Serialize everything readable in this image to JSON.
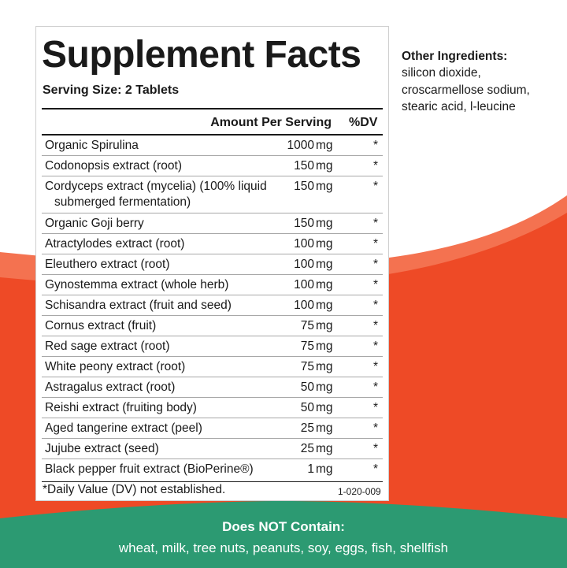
{
  "colors": {
    "accent_red": "#ee4a26",
    "accent_red_light": "#f47250",
    "green": "#2c9a72",
    "text": "#1a1a1a"
  },
  "panel": {
    "title": "Supplement Facts",
    "serving_size": "Serving Size: 2 Tablets",
    "header": {
      "amount": "Amount Per Serving",
      "dv": "%DV"
    },
    "rows": [
      {
        "name": "Organic Spirulina",
        "amount": "1000",
        "unit": "mg",
        "dv": "*"
      },
      {
        "name": "Codonopsis extract (root)",
        "amount": "150",
        "unit": "mg",
        "dv": "*"
      },
      {
        "name": "Cordyceps extract (mycelia) (100% liquid",
        "name_cont": "submerged fermentation)",
        "amount": "150",
        "unit": "mg",
        "dv": "*"
      },
      {
        "name": "Organic Goji berry",
        "amount": "150",
        "unit": "mg",
        "dv": "*"
      },
      {
        "name": "Atractylodes extract (root)",
        "amount": "100",
        "unit": "mg",
        "dv": "*"
      },
      {
        "name": "Eleuthero extract (root)",
        "amount": "100",
        "unit": "mg",
        "dv": "*"
      },
      {
        "name": "Gynostemma extract (whole herb)",
        "amount": "100",
        "unit": "mg",
        "dv": "*"
      },
      {
        "name": "Schisandra extract (fruit and seed)",
        "amount": "100",
        "unit": "mg",
        "dv": "*"
      },
      {
        "name": "Cornus extract (fruit)",
        "amount": "75",
        "unit": "mg",
        "dv": "*"
      },
      {
        "name": "Red sage extract (root)",
        "amount": "75",
        "unit": "mg",
        "dv": "*"
      },
      {
        "name": "White peony extract (root)",
        "amount": "75",
        "unit": "mg",
        "dv": "*"
      },
      {
        "name": "Astragalus extract (root)",
        "amount": "50",
        "unit": "mg",
        "dv": "*"
      },
      {
        "name": "Reishi extract (fruiting body)",
        "amount": "50",
        "unit": "mg",
        "dv": "*"
      },
      {
        "name": "Aged tangerine extract (peel)",
        "amount": "25",
        "unit": "mg",
        "dv": "*"
      },
      {
        "name": "Jujube extract (seed)",
        "amount": "25",
        "unit": "mg",
        "dv": "*"
      },
      {
        "name": "Black pepper fruit extract (BioPerine®)",
        "amount": "1",
        "unit": "mg",
        "dv": "*"
      }
    ],
    "footnote": "*Daily Value (DV) not established.",
    "code": "1-020-009"
  },
  "other_ingredients": {
    "title": "Other Ingredients:",
    "lines": [
      "silicon dioxide,",
      "croscarmellose sodium,",
      "stearic acid, l-leucine"
    ]
  },
  "does_not_contain": {
    "title": "Does NOT Contain:",
    "list": "wheat, milk, tree nuts, peanuts, soy, eggs, fish, shellfish"
  }
}
